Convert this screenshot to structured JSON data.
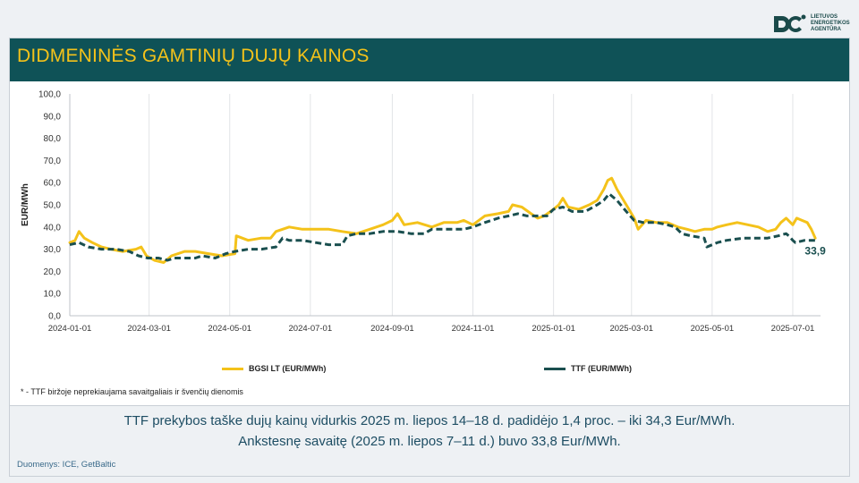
{
  "logo": {
    "lines": [
      "LIETUVOS",
      "ENERGETIKOS",
      "AGENTŪRA"
    ]
  },
  "title": "DIDMENINĖS GAMTINIŲ DUJŲ KAINOS",
  "footnote": "* - TTF biržoje neprekiaujama savaitgaliais ir švenčių dienomis",
  "summary": {
    "line1": "TTF prekybos taške dujų kainų vidurkis 2025 m. liepos 14–18 d. padidėjo 1,4 proc. – iki 34,3 Eur/MWh.",
    "line2": "Ankstesnę savaitę (2025 m. liepos 7–11 d.) buvo 33,8 Eur/MWh."
  },
  "source": "Duomenys: ICE, GetBaltic",
  "colors": {
    "accent": "#f4c21a",
    "ttf": "#1a4f4f",
    "header": "#0f5257"
  },
  "chart_data": {
    "type": "line",
    "ylabel": "EUR/MWh",
    "ylim": [
      0,
      100
    ],
    "yticks": [
      "0,0",
      "10,0",
      "20,0",
      "30,0",
      "40,0",
      "50,0",
      "60,0",
      "70,0",
      "80,0",
      "90,0",
      "100,0"
    ],
    "xlim": [
      "2024-01-01",
      "2025-07-22"
    ],
    "xticks": [
      "2024-01-01",
      "2024-03-01",
      "2024-05-01",
      "2024-07-01",
      "2024-09-01",
      "2024-11-01",
      "2025-01-01",
      "2025-03-01",
      "2025-05-01",
      "2025-07-01"
    ],
    "grid": "vertical",
    "legend_position": "bottom",
    "end_label": "33,9",
    "series": [
      {
        "name": "BGSI LT (EUR/MWh)",
        "color": "#f4c21a",
        "style": "solid",
        "points": [
          [
            "2024-01-01",
            33
          ],
          [
            "2024-01-05",
            34
          ],
          [
            "2024-01-08",
            38
          ],
          [
            "2024-01-12",
            35
          ],
          [
            "2024-01-18",
            33
          ],
          [
            "2024-01-25",
            31
          ],
          [
            "2024-02-01",
            30
          ],
          [
            "2024-02-10",
            29
          ],
          [
            "2024-02-20",
            30
          ],
          [
            "2024-02-24",
            31
          ],
          [
            "2024-02-28",
            27
          ],
          [
            "2024-03-05",
            25
          ],
          [
            "2024-03-12",
            24
          ],
          [
            "2024-03-18",
            27
          ],
          [
            "2024-03-28",
            29
          ],
          [
            "2024-04-05",
            29
          ],
          [
            "2024-04-15",
            28
          ],
          [
            "2024-04-25",
            27
          ],
          [
            "2024-05-05",
            28
          ],
          [
            "2024-05-06",
            36
          ],
          [
            "2024-05-15",
            34
          ],
          [
            "2024-05-25",
            35
          ],
          [
            "2024-06-01",
            35
          ],
          [
            "2024-06-05",
            38
          ],
          [
            "2024-06-15",
            40
          ],
          [
            "2024-06-25",
            39
          ],
          [
            "2024-07-05",
            39
          ],
          [
            "2024-07-15",
            39
          ],
          [
            "2024-07-25",
            38
          ],
          [
            "2024-08-05",
            37
          ],
          [
            "2024-08-15",
            39
          ],
          [
            "2024-08-25",
            41
          ],
          [
            "2024-09-01",
            43
          ],
          [
            "2024-09-05",
            46
          ],
          [
            "2024-09-10",
            41
          ],
          [
            "2024-09-20",
            42
          ],
          [
            "2024-10-01",
            40
          ],
          [
            "2024-10-10",
            42
          ],
          [
            "2024-10-20",
            42
          ],
          [
            "2024-10-25",
            43
          ],
          [
            "2024-11-01",
            41
          ],
          [
            "2024-11-10",
            45
          ],
          [
            "2024-11-20",
            46
          ],
          [
            "2024-11-28",
            47
          ],
          [
            "2024-12-01",
            50
          ],
          [
            "2024-12-08",
            49
          ],
          [
            "2024-12-15",
            46
          ],
          [
            "2024-12-20",
            44
          ],
          [
            "2024-12-25",
            45
          ],
          [
            "2025-01-01",
            48
          ],
          [
            "2025-01-05",
            50
          ],
          [
            "2025-01-08",
            53
          ],
          [
            "2025-01-12",
            49
          ],
          [
            "2025-01-20",
            48
          ],
          [
            "2025-01-28",
            50
          ],
          [
            "2025-02-03",
            52
          ],
          [
            "2025-02-08",
            57
          ],
          [
            "2025-02-11",
            61
          ],
          [
            "2025-02-14",
            62
          ],
          [
            "2025-02-18",
            57
          ],
          [
            "2025-02-25",
            50
          ],
          [
            "2025-03-03",
            44
          ],
          [
            "2025-03-06",
            39
          ],
          [
            "2025-03-12",
            43
          ],
          [
            "2025-03-20",
            42
          ],
          [
            "2025-03-28",
            42
          ],
          [
            "2025-04-05",
            40
          ],
          [
            "2025-04-12",
            39
          ],
          [
            "2025-04-18",
            38
          ],
          [
            "2025-04-25",
            39
          ],
          [
            "2025-05-01",
            39
          ],
          [
            "2025-05-05",
            40
          ],
          [
            "2025-05-12",
            41
          ],
          [
            "2025-05-20",
            42
          ],
          [
            "2025-05-28",
            41
          ],
          [
            "2025-06-05",
            40
          ],
          [
            "2025-06-12",
            38
          ],
          [
            "2025-06-18",
            39
          ],
          [
            "2025-06-22",
            42
          ],
          [
            "2025-06-26",
            44
          ],
          [
            "2025-07-01",
            41
          ],
          [
            "2025-07-04",
            44
          ],
          [
            "2025-07-08",
            43
          ],
          [
            "2025-07-12",
            42
          ],
          [
            "2025-07-15",
            39
          ],
          [
            "2025-07-18",
            35
          ]
        ]
      },
      {
        "name": "TTF (EUR/MWh)",
        "color": "#1a4f4f",
        "style": "dashed",
        "points": [
          [
            "2024-01-01",
            32
          ],
          [
            "2024-01-08",
            33
          ],
          [
            "2024-01-15",
            31
          ],
          [
            "2024-01-25",
            30
          ],
          [
            "2024-02-05",
            30
          ],
          [
            "2024-02-15",
            29
          ],
          [
            "2024-02-22",
            27
          ],
          [
            "2024-02-29",
            26
          ],
          [
            "2024-03-08",
            26
          ],
          [
            "2024-03-15",
            25
          ],
          [
            "2024-03-20",
            26
          ],
          [
            "2024-03-28",
            26
          ],
          [
            "2024-04-05",
            26
          ],
          [
            "2024-04-10",
            27
          ],
          [
            "2024-04-20",
            26
          ],
          [
            "2024-04-28",
            28
          ],
          [
            "2024-05-05",
            29
          ],
          [
            "2024-05-15",
            30
          ],
          [
            "2024-05-25",
            30
          ],
          [
            "2024-06-05",
            31
          ],
          [
            "2024-06-10",
            35
          ],
          [
            "2024-06-15",
            34
          ],
          [
            "2024-06-25",
            34
          ],
          [
            "2024-07-05",
            33
          ],
          [
            "2024-07-15",
            32
          ],
          [
            "2024-07-25",
            32
          ],
          [
            "2024-07-29",
            36
          ],
          [
            "2024-08-05",
            37
          ],
          [
            "2024-08-15",
            37
          ],
          [
            "2024-08-25",
            38
          ],
          [
            "2024-09-05",
            38
          ],
          [
            "2024-09-15",
            37
          ],
          [
            "2024-09-25",
            37
          ],
          [
            "2024-10-01",
            39
          ],
          [
            "2024-10-15",
            39
          ],
          [
            "2024-10-25",
            39
          ],
          [
            "2024-11-01",
            40
          ],
          [
            "2024-11-10",
            42
          ],
          [
            "2024-11-20",
            44
          ],
          [
            "2024-11-28",
            45
          ],
          [
            "2024-12-05",
            46
          ],
          [
            "2024-12-12",
            45
          ],
          [
            "2024-12-19",
            45
          ],
          [
            "2024-12-27",
            45
          ],
          [
            "2025-01-01",
            48
          ],
          [
            "2025-01-08",
            49
          ],
          [
            "2025-01-15",
            47
          ],
          [
            "2025-01-25",
            47
          ],
          [
            "2025-02-03",
            50
          ],
          [
            "2025-02-08",
            52
          ],
          [
            "2025-02-12",
            55
          ],
          [
            "2025-02-18",
            52
          ],
          [
            "2025-02-25",
            47
          ],
          [
            "2025-03-03",
            43
          ],
          [
            "2025-03-10",
            42
          ],
          [
            "2025-03-20",
            42
          ],
          [
            "2025-03-28",
            41
          ],
          [
            "2025-04-03",
            40
          ],
          [
            "2025-04-08",
            37
          ],
          [
            "2025-04-15",
            36
          ],
          [
            "2025-04-25",
            35
          ],
          [
            "2025-04-27",
            31
          ],
          [
            "2025-05-05",
            33
          ],
          [
            "2025-05-12",
            34
          ],
          [
            "2025-05-25",
            35
          ],
          [
            "2025-06-05",
            35
          ],
          [
            "2025-06-12",
            35
          ],
          [
            "2025-06-20",
            36
          ],
          [
            "2025-06-26",
            37
          ],
          [
            "2025-06-28",
            36
          ],
          [
            "2025-07-01",
            34
          ],
          [
            "2025-07-03",
            33
          ],
          [
            "2025-07-10",
            34
          ],
          [
            "2025-07-16",
            34
          ],
          [
            "2025-07-18",
            34
          ]
        ]
      }
    ]
  }
}
